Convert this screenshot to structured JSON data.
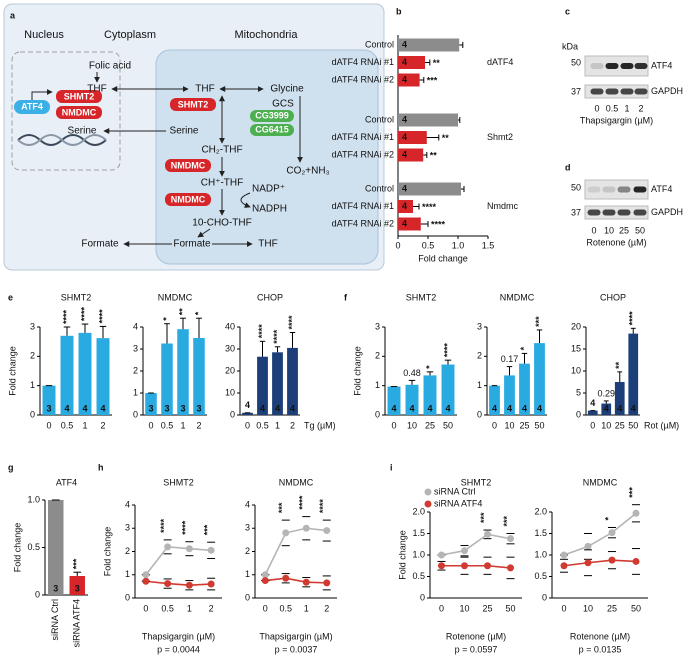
{
  "panel_labels": [
    "a",
    "b",
    "c",
    "d",
    "e",
    "f",
    "g",
    "h",
    "i"
  ],
  "diagram": {
    "headers": [
      "Nucleus",
      "Cytoplasm",
      "Mitochondria"
    ],
    "nodes": [
      "ATF4",
      "SHMT2",
      "NMDMC",
      "Folic acid",
      "THF",
      "THF",
      "Glycine",
      "SHMT2",
      "GCS",
      "CG3999",
      "CG6415",
      "Serine",
      "Serine",
      "CH₂-THF",
      "NMDMC",
      "CO₂+NH₃",
      "CH⁺-THF",
      "NADP⁺",
      "NADPH",
      "NMDMC",
      "10-CHO-THF",
      "Formate",
      "Formate",
      "THF"
    ]
  },
  "blots": [
    {
      "kda": "kDa",
      "markers": [
        50,
        37
      ],
      "bands": [
        "ATF4",
        "GAPDH"
      ],
      "lanes": [
        "0",
        "0.5",
        "1",
        "2"
      ],
      "xlabel": "Thapsigargin (µM)"
    },
    {
      "markers": [
        50,
        37
      ],
      "bands": [
        "ATF4",
        "GAPDH"
      ],
      "lanes": [
        "0",
        "10",
        "25",
        "50"
      ],
      "xlabel": "Rotenone (µM)"
    }
  ],
  "chart_data": [
    {
      "type": "hbar",
      "categories": [
        "Control",
        "dATF4 RNAi #1",
        "dATF4 RNAi #2"
      ],
      "colors": [
        "#8c8c8c",
        "#d7262a",
        "#d7262a"
      ],
      "groups": [
        {
          "name": "dATF4",
          "values": [
            1.02,
            0.45,
            0.36
          ],
          "errors": [
            0.06,
            0.08,
            0.07
          ],
          "n": [
            4,
            4,
            4
          ],
          "annotations": [
            null,
            "**",
            "***"
          ]
        },
        {
          "name": "Shmt2",
          "values": [
            1.0,
            0.48,
            0.42
          ],
          "errors": [
            0.03,
            0.2,
            0.06
          ],
          "n": [
            4,
            4,
            4
          ],
          "annotations": [
            null,
            "**",
            "**"
          ]
        },
        {
          "name": "Nmdmc",
          "values": [
            1.05,
            0.25,
            0.38
          ],
          "errors": [
            0.05,
            0.1,
            0.12
          ],
          "n": [
            4,
            4,
            4
          ],
          "annotations": [
            null,
            "****",
            "****"
          ]
        }
      ],
      "xlabel": "Fold change",
      "xlim": [
        0,
        1.5
      ],
      "xticks": [
        0,
        0.5,
        {
          "value": 1,
          "label": "1.0"
        },
        1.5
      ]
    },
    {
      "type": "bar",
      "title": "SHMT2",
      "categories": [
        "0",
        "0.5",
        "1",
        "2"
      ],
      "values": [
        1,
        2.7,
        2.8,
        2.62
      ],
      "errors": [
        0,
        0.3,
        0.3,
        0.4
      ],
      "n": [
        3,
        4,
        4,
        4
      ],
      "annotations": [
        null,
        "****",
        "****",
        "****"
      ],
      "color": "#29abe2",
      "ylim": [
        0,
        3
      ],
      "yticks": [
        0,
        1,
        2,
        3
      ],
      "ylabel": "Fold change"
    },
    {
      "type": "bar",
      "title": "NMDMC",
      "categories": [
        "0",
        "0.5",
        "1",
        "2"
      ],
      "values": [
        1,
        3.25,
        3.9,
        3.5
      ],
      "errors": [
        0,
        0.9,
        0.5,
        0.9
      ],
      "n": [
        3,
        3,
        3,
        3
      ],
      "annotations": [
        null,
        "*",
        "**",
        "*"
      ],
      "color": "#29abe2",
      "ylim": [
        0,
        4
      ],
      "yticks": [
        0,
        1,
        2,
        3,
        4
      ]
    },
    {
      "type": "bar",
      "title": "CHOP",
      "categories": [
        "0",
        "0.5",
        "1",
        "2"
      ],
      "values": [
        1,
        26.5,
        28.5,
        30.5
      ],
      "errors": [
        0,
        7,
        2.5,
        7
      ],
      "n": [
        4,
        4,
        4,
        4
      ],
      "annotations": [
        null,
        "****",
        "****",
        "****"
      ],
      "color": "#1c3f7a",
      "ylim": [
        0,
        40
      ],
      "yticks": [
        0,
        10,
        20,
        30,
        40
      ],
      "xlabel": "Tg (µM)"
    },
    {
      "type": "bar",
      "title": "SHMT2",
      "categories": [
        "0",
        "10",
        "25",
        "50"
      ],
      "values": [
        0.97,
        1.03,
        1.35,
        1.72
      ],
      "errors": [
        0,
        0.15,
        0.12,
        0.15
      ],
      "n": [
        4,
        4,
        4,
        4
      ],
      "annotations": [
        null,
        "0.48",
        "*",
        "****"
      ],
      "color": "#29abe2",
      "ylim": [
        0,
        3
      ],
      "yticks": [
        0,
        1,
        2,
        3
      ],
      "ylabel": "Fold change"
    },
    {
      "type": "bar",
      "title": "NMDMC",
      "categories": [
        "0",
        "10",
        "25",
        "50"
      ],
      "values": [
        1,
        1.35,
        1.75,
        2.45
      ],
      "errors": [
        0,
        0.3,
        0.35,
        0.45
      ],
      "n": [
        4,
        4,
        4,
        4
      ],
      "annotations": [
        null,
        "0.17",
        "*",
        "***"
      ],
      "color": "#29abe2",
      "ylim": [
        0,
        3
      ],
      "yticks": [
        0,
        1,
        2,
        3
      ]
    },
    {
      "type": "bar",
      "title": "CHOP",
      "categories": [
        "0",
        "10",
        "25",
        "50"
      ],
      "values": [
        1,
        2.6,
        7.5,
        18.5
      ],
      "errors": [
        0,
        0.6,
        2.3,
        1.2
      ],
      "n": [
        4,
        4,
        4,
        4
      ],
      "annotations": [
        null,
        "0.29",
        "**",
        "****"
      ],
      "color": "#1c3f7a",
      "ylim": [
        0,
        20
      ],
      "yticks": [
        0,
        5,
        10,
        15,
        20
      ],
      "xlabel": "Rot (µM)"
    },
    {
      "type": "bar",
      "title": "ATF4",
      "categories": [
        "siRNA Ctrl",
        "siRNA ATF4"
      ],
      "values": [
        1,
        0.2
      ],
      "errors": [
        0,
        0.04
      ],
      "n": [
        3,
        3
      ],
      "annotations": [
        null,
        "***"
      ],
      "colors": [
        "#8c8c8c",
        "#d7262a"
      ],
      "ylim": [
        0,
        1
      ],
      "yticks": [
        0,
        0.5,
        {
          "value": 1,
          "label": "1.0"
        }
      ],
      "ylabel": "Fold change",
      "rotate_categories": true
    },
    {
      "type": "line",
      "title": "SHMT2",
      "categories": [
        "0",
        "0.5",
        "1",
        "2"
      ],
      "series": [
        {
          "color": "#b5b5b5",
          "values": [
            1,
            2.2,
            2.12,
            2.05
          ],
          "errors": [
            0,
            0.3,
            0.3,
            0.35
          ]
        },
        {
          "color": "#d03a30",
          "values": [
            0.72,
            0.62,
            0.55,
            0.6
          ],
          "errors": [
            0,
            0.2,
            0.2,
            0.25
          ]
        }
      ],
      "annotations": [
        null,
        "****",
        "****",
        "***"
      ],
      "ylim": [
        0,
        4
      ],
      "yticks": [
        0,
        1,
        2,
        3,
        4
      ],
      "ylabel": "Fold change",
      "xlabel": "Thapsigargin (µM)",
      "note": "p = 0.0044"
    },
    {
      "type": "line",
      "title": "NMDMC",
      "categories": [
        "0",
        "0.5",
        "1",
        "2"
      ],
      "series": [
        {
          "color": "#b5b5b5",
          "values": [
            1,
            2.8,
            3.0,
            2.9
          ],
          "errors": [
            0,
            0.55,
            0.5,
            0.45
          ]
        },
        {
          "color": "#d03a30",
          "values": [
            0.75,
            0.85,
            0.68,
            0.65
          ],
          "errors": [
            0,
            0.2,
            0.2,
            0.3
          ]
        }
      ],
      "annotations": [
        null,
        "***",
        "****",
        "****"
      ],
      "ylim": [
        0,
        4
      ],
      "yticks": [
        0,
        1,
        2,
        3,
        4
      ],
      "xlabel": "Thapsigargin (µM)",
      "note": "p = 0.0037"
    },
    {
      "type": "line",
      "title": "SHMT2",
      "categories": [
        "0",
        "10",
        "25",
        "50"
      ],
      "series": [
        {
          "name": "siRNA Ctrl",
          "color": "#b5b5b5",
          "values": [
            1,
            1.1,
            1.48,
            1.38
          ],
          "errors": [
            0,
            0.12,
            0.1,
            0.12
          ]
        },
        {
          "name": "siRNA ATF4",
          "color": "#d03a30",
          "values": [
            0.75,
            0.75,
            0.75,
            0.7
          ],
          "errors": [
            0.1,
            0.2,
            0.2,
            0.25
          ]
        }
      ],
      "annotations": [
        null,
        null,
        "***",
        "***"
      ],
      "ylim": [
        0,
        2
      ],
      "yticks": [
        0,
        0.5,
        {
          "value": 1,
          "label": "1.0"
        },
        1.5,
        {
          "value": 2,
          "label": "2.0"
        }
      ],
      "ylabel": "Fold change",
      "xlabel": "Rotenone (µM)",
      "note": "p = 0.0597",
      "legend": "top-left"
    },
    {
      "type": "line",
      "title": "NMDMC",
      "categories": [
        "0",
        "10",
        "25",
        "50"
      ],
      "series": [
        {
          "color": "#b5b5b5",
          "values": [
            1,
            1.2,
            1.52,
            1.97
          ],
          "errors": [
            0,
            0.3,
            0.12,
            0.2
          ]
        },
        {
          "color": "#d03a30",
          "values": [
            0.75,
            0.82,
            0.88,
            0.85
          ],
          "errors": [
            0.15,
            0.3,
            0.2,
            0.3
          ]
        }
      ],
      "annotations": [
        null,
        null,
        "*",
        "***"
      ],
      "ylim": [
        0,
        2
      ],
      "yticks": [
        0,
        0.5,
        {
          "value": 1,
          "label": "1.0"
        },
        1.5,
        {
          "value": 2,
          "label": "2.0"
        }
      ],
      "xlabel": "Rotenone (µM)",
      "note": "p = 0.0135"
    }
  ]
}
